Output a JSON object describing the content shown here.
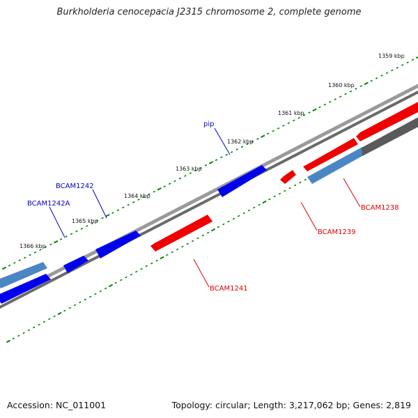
{
  "title": "Burkholderia cenocepacia J2315 chromosome 2, complete genome",
  "footer": {
    "accession": "Accession: NC_011001",
    "summary": "Topology: circular; Length: 3,217,062 bp; Genes: 2,819"
  },
  "colors": {
    "forward_gene": "#0000ee",
    "reverse_gene": "#ee0000",
    "muted_forward_gene": "#4a86c4",
    "muted_reverse_gene": "#5a5a5a",
    "backbone": "#7a7a7a",
    "ticks": "#008000",
    "forward_label": "#0000cc",
    "reverse_label": "#dd0000"
  },
  "ticks": [
    {
      "label": "1359 kbp"
    },
    {
      "label": "1360 kbp"
    },
    {
      "label": "1361 kbp"
    },
    {
      "label": "1362 kbp"
    },
    {
      "label": "1363 kbp"
    },
    {
      "label": "1364 kbp"
    },
    {
      "label": "1365 kbp"
    },
    {
      "label": "1366 kbp"
    }
  ],
  "genes": [
    {
      "name": "pip",
      "strand": "forward"
    },
    {
      "name": "BCAM1242",
      "strand": "forward"
    },
    {
      "name": "BCAM1242A",
      "strand": "forward"
    },
    {
      "name": "BCAM1238",
      "strand": "reverse"
    },
    {
      "name": "BCAM1239",
      "strand": "reverse"
    },
    {
      "name": "BCAM1241",
      "strand": "reverse"
    }
  ]
}
